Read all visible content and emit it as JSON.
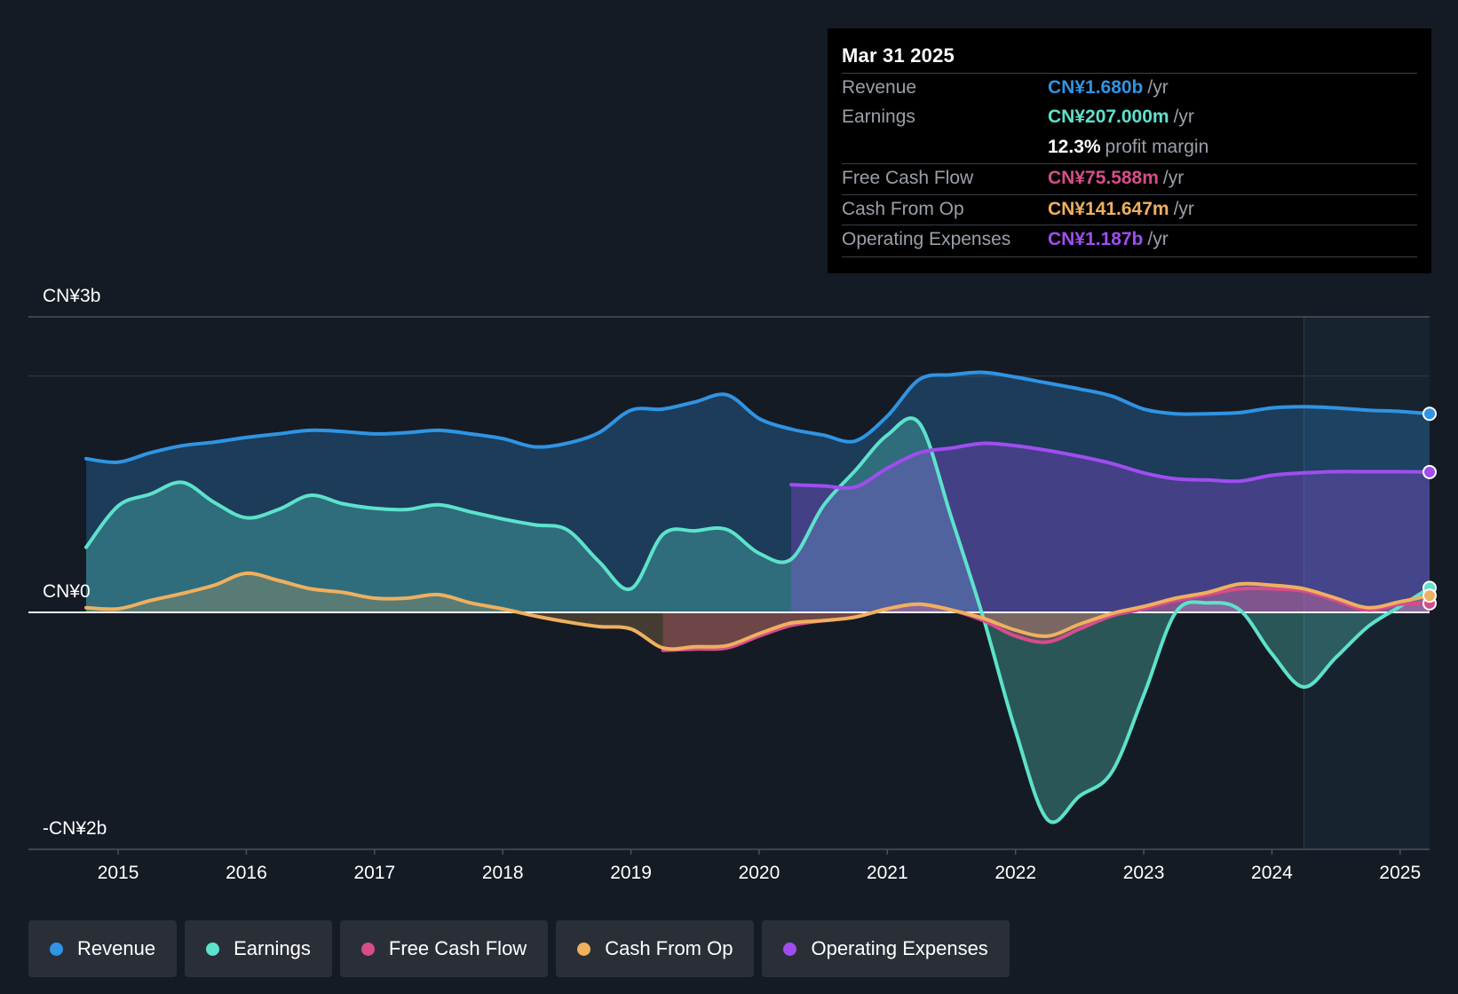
{
  "tooltip": {
    "date": "Mar 31 2025",
    "rows": [
      {
        "label": "Revenue",
        "value": "CN¥1.680b",
        "unit": "/yr",
        "color": "#2f94e4"
      },
      {
        "label": "Earnings",
        "value": "CN¥207.000m",
        "unit": "/yr",
        "color": "#5de2cc"
      },
      {
        "label": "",
        "value": "12.3%",
        "unit": "profit margin",
        "color": "#ffffff"
      },
      {
        "label": "Free Cash Flow",
        "value": "CN¥75.588m",
        "unit": "/yr",
        "color": "#d64d8a"
      },
      {
        "label": "Cash From Op",
        "value": "CN¥141.647m",
        "unit": "/yr",
        "color": "#efb05f"
      },
      {
        "label": "Operating Expenses",
        "value": "CN¥1.187b",
        "unit": "/yr",
        "color": "#a04df0"
      }
    ]
  },
  "legend": [
    {
      "label": "Revenue",
      "color": "#2f94e4"
    },
    {
      "label": "Earnings",
      "color": "#5de2cc"
    },
    {
      "label": "Free Cash Flow",
      "color": "#d64d8a"
    },
    {
      "label": "Cash From Op",
      "color": "#efb05f"
    },
    {
      "label": "Operating Expenses",
      "color": "#a04df0"
    }
  ],
  "chart_data": {
    "type": "area",
    "ylabel_top": "CN¥3b",
    "ylabel_zero": "CN¥0",
    "ylabel_bottom": "-CN¥2b",
    "ylim": [
      -2.0,
      2.5
    ],
    "xlim": [
      2014.3,
      2025.23
    ],
    "x_ticks": [
      "2015",
      "2016",
      "2017",
      "2018",
      "2019",
      "2020",
      "2021",
      "2022",
      "2023",
      "2024",
      "2025"
    ],
    "forecast_start": 2024.25,
    "units": "CN¥ billions",
    "series": [
      {
        "name": "Revenue",
        "color": "#2f94e4",
        "points": [
          [
            2014.75,
            1.3
          ],
          [
            2015,
            1.27
          ],
          [
            2015.25,
            1.35
          ],
          [
            2015.5,
            1.41
          ],
          [
            2015.75,
            1.44
          ],
          [
            2016,
            1.48
          ],
          [
            2016.25,
            1.51
          ],
          [
            2016.5,
            1.54
          ],
          [
            2016.75,
            1.53
          ],
          [
            2017,
            1.51
          ],
          [
            2017.25,
            1.52
          ],
          [
            2017.5,
            1.54
          ],
          [
            2017.75,
            1.51
          ],
          [
            2018,
            1.47
          ],
          [
            2018.25,
            1.4
          ],
          [
            2018.5,
            1.43
          ],
          [
            2018.75,
            1.52
          ],
          [
            2019,
            1.71
          ],
          [
            2019.25,
            1.72
          ],
          [
            2019.5,
            1.78
          ],
          [
            2019.75,
            1.84
          ],
          [
            2020,
            1.64
          ],
          [
            2020.25,
            1.55
          ],
          [
            2020.5,
            1.5
          ],
          [
            2020.75,
            1.45
          ],
          [
            2021,
            1.66
          ],
          [
            2021.25,
            1.97
          ],
          [
            2021.5,
            2.01
          ],
          [
            2021.75,
            2.03
          ],
          [
            2022,
            1.99
          ],
          [
            2022.25,
            1.94
          ],
          [
            2022.5,
            1.89
          ],
          [
            2022.75,
            1.83
          ],
          [
            2023,
            1.72
          ],
          [
            2023.25,
            1.68
          ],
          [
            2023.5,
            1.68
          ],
          [
            2023.75,
            1.69
          ],
          [
            2024,
            1.73
          ],
          [
            2024.25,
            1.74
          ],
          [
            2024.5,
            1.73
          ],
          [
            2024.75,
            1.71
          ],
          [
            2025,
            1.7
          ],
          [
            2025.23,
            1.68
          ]
        ]
      },
      {
        "name": "Earnings",
        "color": "#5de2cc",
        "points": [
          [
            2014.75,
            0.55
          ],
          [
            2015,
            0.9
          ],
          [
            2015.25,
            1.0
          ],
          [
            2015.5,
            1.1
          ],
          [
            2015.75,
            0.93
          ],
          [
            2016,
            0.8
          ],
          [
            2016.25,
            0.87
          ],
          [
            2016.5,
            0.99
          ],
          [
            2016.75,
            0.92
          ],
          [
            2017,
            0.88
          ],
          [
            2017.25,
            0.87
          ],
          [
            2017.5,
            0.91
          ],
          [
            2017.75,
            0.85
          ],
          [
            2018,
            0.79
          ],
          [
            2018.25,
            0.74
          ],
          [
            2018.5,
            0.7
          ],
          [
            2018.75,
            0.43
          ],
          [
            2019,
            0.2
          ],
          [
            2019.25,
            0.66
          ],
          [
            2019.5,
            0.69
          ],
          [
            2019.75,
            0.7
          ],
          [
            2020,
            0.5
          ],
          [
            2020.25,
            0.45
          ],
          [
            2020.5,
            0.9
          ],
          [
            2020.75,
            1.2
          ],
          [
            2021,
            1.5
          ],
          [
            2021.25,
            1.6
          ],
          [
            2021.5,
            0.8
          ],
          [
            2021.75,
            -0.05
          ],
          [
            2022,
            -1.0
          ],
          [
            2022.25,
            -1.75
          ],
          [
            2022.5,
            -1.55
          ],
          [
            2022.75,
            -1.35
          ],
          [
            2023,
            -0.7
          ],
          [
            2023.25,
            0.0
          ],
          [
            2023.5,
            0.08
          ],
          [
            2023.75,
            0.02
          ],
          [
            2024,
            -0.35
          ],
          [
            2024.25,
            -0.63
          ],
          [
            2024.5,
            -0.38
          ],
          [
            2024.75,
            -0.12
          ],
          [
            2025,
            0.05
          ],
          [
            2025.23,
            0.207
          ]
        ]
      },
      {
        "name": "Free Cash Flow",
        "color": "#d64d8a",
        "points": [
          [
            2019.25,
            -0.32
          ],
          [
            2019.5,
            -0.31
          ],
          [
            2019.75,
            -0.3
          ],
          [
            2020,
            -0.2
          ],
          [
            2020.25,
            -0.11
          ],
          [
            2020.5,
            -0.07
          ],
          [
            2020.75,
            -0.04
          ],
          [
            2021,
            0.03
          ],
          [
            2021.25,
            0.07
          ],
          [
            2021.5,
            0.02
          ],
          [
            2021.75,
            -0.07
          ],
          [
            2022,
            -0.2
          ],
          [
            2022.25,
            -0.25
          ],
          [
            2022.5,
            -0.14
          ],
          [
            2022.75,
            -0.03
          ],
          [
            2023,
            0.03
          ],
          [
            2023.25,
            0.1
          ],
          [
            2023.5,
            0.15
          ],
          [
            2023.75,
            0.2
          ],
          [
            2024,
            0.2
          ],
          [
            2024.25,
            0.18
          ],
          [
            2024.5,
            0.1
          ],
          [
            2024.75,
            0.02
          ],
          [
            2025,
            0.07
          ],
          [
            2025.23,
            0.076
          ]
        ]
      },
      {
        "name": "Cash From Op",
        "color": "#efb05f",
        "points": [
          [
            2014.75,
            0.04
          ],
          [
            2015,
            0.03
          ],
          [
            2015.25,
            0.1
          ],
          [
            2015.5,
            0.16
          ],
          [
            2015.75,
            0.23
          ],
          [
            2016,
            0.33
          ],
          [
            2016.25,
            0.27
          ],
          [
            2016.5,
            0.2
          ],
          [
            2016.75,
            0.17
          ],
          [
            2017,
            0.12
          ],
          [
            2017.25,
            0.12
          ],
          [
            2017.5,
            0.15
          ],
          [
            2017.75,
            0.08
          ],
          [
            2018,
            0.03
          ],
          [
            2018.25,
            -0.03
          ],
          [
            2018.5,
            -0.08
          ],
          [
            2018.75,
            -0.12
          ],
          [
            2019,
            -0.14
          ],
          [
            2019.25,
            -0.3
          ],
          [
            2019.5,
            -0.29
          ],
          [
            2019.75,
            -0.28
          ],
          [
            2020,
            -0.18
          ],
          [
            2020.25,
            -0.09
          ],
          [
            2020.5,
            -0.07
          ],
          [
            2020.75,
            -0.04
          ],
          [
            2021,
            0.03
          ],
          [
            2021.25,
            0.07
          ],
          [
            2021.5,
            0.02
          ],
          [
            2021.75,
            -0.05
          ],
          [
            2022,
            -0.15
          ],
          [
            2022.25,
            -0.2
          ],
          [
            2022.5,
            -0.1
          ],
          [
            2022.75,
            -0.01
          ],
          [
            2023,
            0.05
          ],
          [
            2023.25,
            0.12
          ],
          [
            2023.5,
            0.17
          ],
          [
            2023.75,
            0.24
          ],
          [
            2024,
            0.23
          ],
          [
            2024.25,
            0.2
          ],
          [
            2024.5,
            0.12
          ],
          [
            2024.75,
            0.04
          ],
          [
            2025,
            0.09
          ],
          [
            2025.23,
            0.142
          ]
        ]
      },
      {
        "name": "Operating Expenses",
        "color": "#a04df0",
        "points": [
          [
            2020.25,
            1.08
          ],
          [
            2020.5,
            1.07
          ],
          [
            2020.75,
            1.06
          ],
          [
            2021,
            1.22
          ],
          [
            2021.25,
            1.35
          ],
          [
            2021.5,
            1.39
          ],
          [
            2021.75,
            1.43
          ],
          [
            2022,
            1.41
          ],
          [
            2022.25,
            1.37
          ],
          [
            2022.5,
            1.32
          ],
          [
            2022.75,
            1.26
          ],
          [
            2023,
            1.18
          ],
          [
            2023.25,
            1.13
          ],
          [
            2023.5,
            1.12
          ],
          [
            2023.75,
            1.11
          ],
          [
            2024,
            1.16
          ],
          [
            2024.25,
            1.18
          ],
          [
            2024.5,
            1.19
          ],
          [
            2024.75,
            1.19
          ],
          [
            2025,
            1.19
          ],
          [
            2025.23,
            1.187
          ]
        ]
      }
    ]
  }
}
